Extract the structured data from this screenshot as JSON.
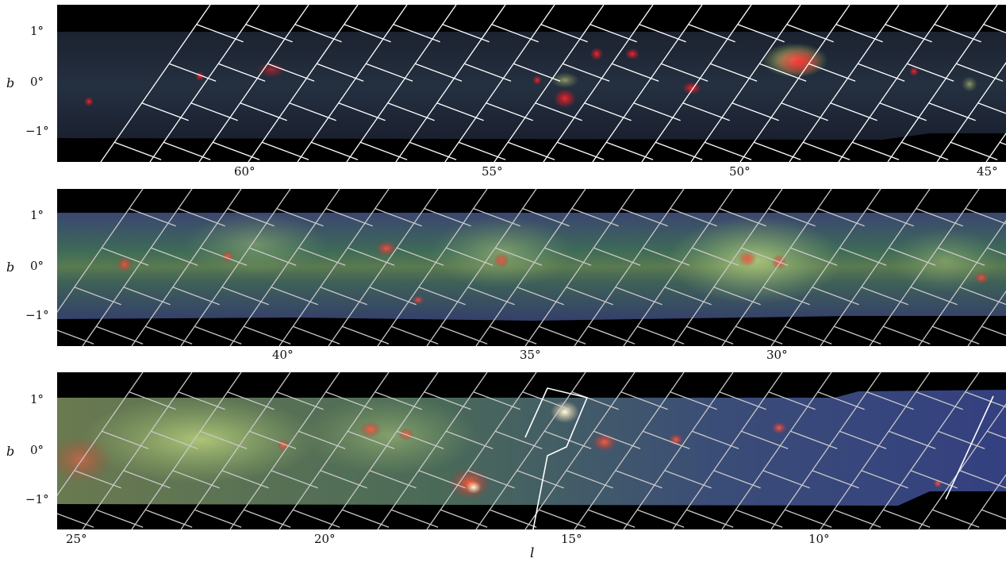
{
  "figure": {
    "y_axis_label": "b",
    "x_axis_label": "l",
    "y_ticks": [
      "1°",
      "0°",
      "−1°"
    ],
    "panels": [
      {
        "name": "top",
        "x_ticks": [
          "60°",
          "55°",
          "50°",
          "45°"
        ],
        "tone": "dark",
        "frame_color": "#ffffff"
      },
      {
        "name": "middle",
        "x_ticks": [
          "40°",
          "35°",
          "30°"
        ],
        "tone": "blue-green",
        "frame_color": "#c8c8c8"
      },
      {
        "name": "bottom",
        "x_ticks": [
          "25°",
          "20°",
          "15°",
          "10°"
        ],
        "tone": "blue-green",
        "frame_color": "#c8c8c8"
      }
    ]
  }
}
